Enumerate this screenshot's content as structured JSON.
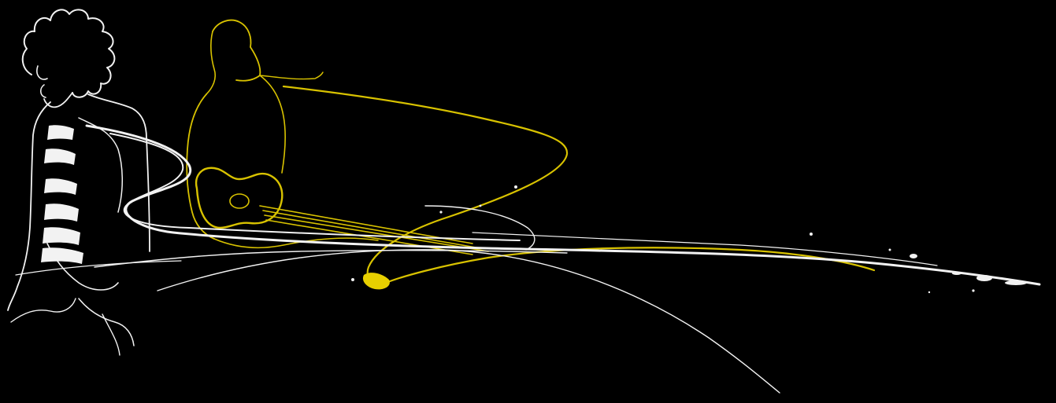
{
  "artwork": {
    "background": "#000000",
    "line_white": "#f2f2f2",
    "line_yellow": "#d8c200",
    "figures": [
      "curly-haired-figure",
      "seated-guitarist"
    ]
  }
}
